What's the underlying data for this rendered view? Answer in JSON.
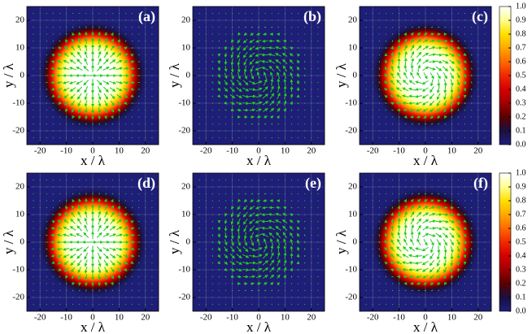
{
  "colormap": [
    "#1e1e78",
    "#1a1040",
    "#5a0000",
    "#a00000",
    "#d40000",
    "#f02800",
    "#ff6a00",
    "#ffa800",
    "#ffe000",
    "#ffff90",
    "#ffffff"
  ],
  "chart_data": [
    {
      "type": "heatmap",
      "label": "(a)",
      "xlabel": "x / λ",
      "ylabel": "y / λ",
      "xlim": [
        -25,
        25
      ],
      "ylim": [
        -25,
        25
      ],
      "xticks": [
        -20,
        -10,
        0,
        10,
        20
      ],
      "yticks": [
        -20,
        -10,
        0,
        10,
        20
      ],
      "grid": true,
      "peak": 1,
      "beam_radius": 16,
      "field_rotation": 0,
      "arrow_color": "#22cc22"
    },
    {
      "type": "heatmap",
      "label": "(b)",
      "xlabel": "x / λ",
      "ylabel": "y / λ",
      "xlim": [
        -25,
        25
      ],
      "ylim": [
        -25,
        25
      ],
      "xticks": [
        -20,
        -10,
        0,
        10,
        20
      ],
      "yticks": [
        -20,
        -10,
        0,
        10,
        20
      ],
      "grid": true,
      "peak": 0.02,
      "beam_radius": 16,
      "field_rotation": 110,
      "arrow_color": "#22cc22"
    },
    {
      "type": "heatmap",
      "label": "(c)",
      "xlabel": "x / λ",
      "ylabel": "y / λ",
      "xlim": [
        -25,
        25
      ],
      "ylim": [
        -25,
        25
      ],
      "xticks": [
        -20,
        -10,
        0,
        10,
        20
      ],
      "yticks": [
        -20,
        -10,
        0,
        10,
        20
      ],
      "grid": true,
      "peak": 1,
      "beam_radius": 16,
      "field_rotation": -60,
      "arrow_color": "#22cc22",
      "colorbar": {
        "lim": [
          0,
          1
        ],
        "ticks": [
          {
            "value": 0,
            "label": "0.0"
          },
          0.1,
          0.2,
          0.3,
          0.4,
          0.5,
          0.6,
          0.7,
          0.8,
          0.9,
          {
            "value": 1,
            "label": "1.0"
          }
        ]
      }
    },
    {
      "type": "heatmap",
      "label": "(d)",
      "xlabel": "x / λ",
      "ylabel": "y / λ",
      "xlim": [
        -25,
        25
      ],
      "ylim": [
        -25,
        25
      ],
      "xticks": [
        -20,
        -10,
        0,
        10,
        20
      ],
      "yticks": [
        -20,
        -10,
        0,
        10,
        20
      ],
      "grid": true,
      "peak": 1,
      "beam_radius": 16,
      "field_rotation": 0,
      "arrow_color": "#22cc22"
    },
    {
      "type": "heatmap",
      "label": "(e)",
      "xlabel": "x / λ",
      "ylabel": "y / λ",
      "xlim": [
        -25,
        25
      ],
      "ylim": [
        -25,
        25
      ],
      "xticks": [
        -20,
        -10,
        0,
        10,
        20
      ],
      "yticks": [
        -20,
        -10,
        0,
        10,
        20
      ],
      "grid": true,
      "peak": 0.02,
      "beam_radius": 16,
      "field_rotation": 110,
      "arrow_color": "#22cc22"
    },
    {
      "type": "heatmap",
      "label": "(f)",
      "xlabel": "x / λ",
      "ylabel": "y / λ",
      "xlim": [
        -25,
        25
      ],
      "ylim": [
        -25,
        25
      ],
      "xticks": [
        -20,
        -10,
        0,
        10,
        20
      ],
      "yticks": [
        -20,
        -10,
        0,
        10,
        20
      ],
      "grid": true,
      "peak": 1,
      "beam_radius": 16,
      "field_rotation": -60,
      "arrow_color": "#22cc22",
      "colorbar": {
        "lim": [
          0,
          1
        ],
        "ticks": [
          {
            "value": 0,
            "label": "0.0"
          },
          0.1,
          0.2,
          0.3,
          0.4,
          0.5,
          0.6,
          0.7,
          0.8,
          0.9,
          {
            "value": 1,
            "label": "1.0"
          }
        ]
      }
    }
  ]
}
